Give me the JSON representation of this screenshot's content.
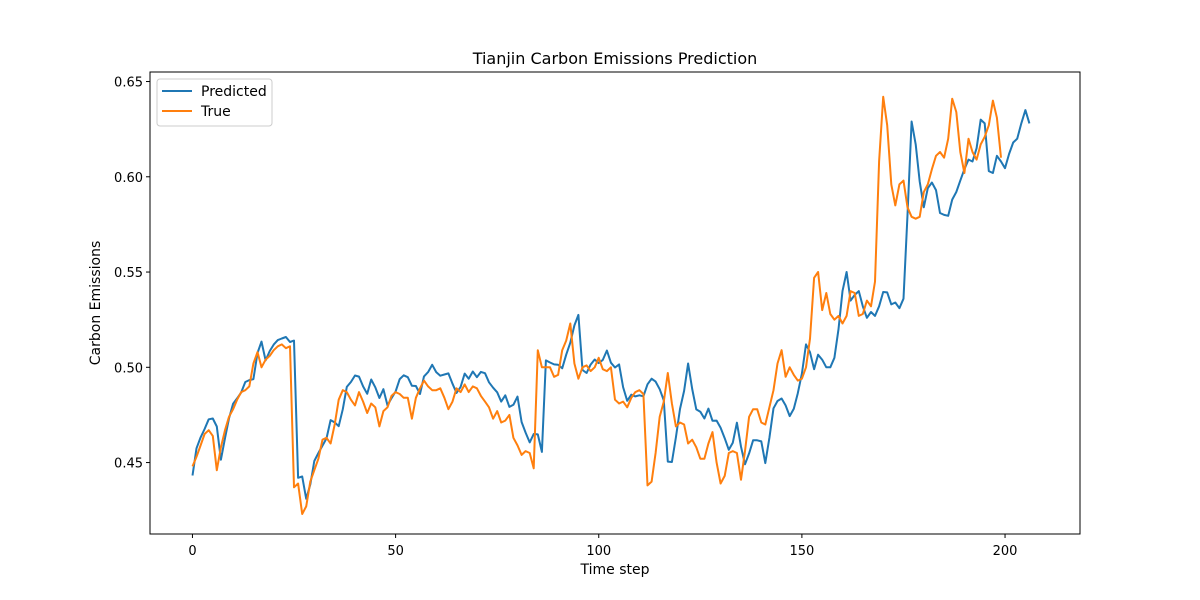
{
  "chart_data": {
    "type": "line",
    "title": "Tianjin Carbon Emissions Prediction",
    "xlabel": "Time step",
    "ylabel": "Carbon Emissions",
    "xlim": [
      -10.45,
      218.45
    ],
    "ylim": [
      0.4125,
      0.655
    ],
    "xticks": [
      0,
      50,
      100,
      150,
      200
    ],
    "yticks": [
      0.45,
      0.5,
      0.55,
      0.6,
      0.65
    ],
    "ytick_labels": [
      "0.45",
      "0.50",
      "0.55",
      "0.60",
      "0.65"
    ],
    "legend_position": "upper-left",
    "grid": false,
    "series": [
      {
        "name": "Predicted",
        "color": "#1f77b4",
        "values": [
          0.4432,
          0.4575,
          0.4632,
          0.4676,
          0.4727,
          0.4731,
          0.4689,
          0.4515,
          0.4628,
          0.4732,
          0.4809,
          0.4837,
          0.4868,
          0.4923,
          0.4933,
          0.4938,
          0.5075,
          0.5135,
          0.5036,
          0.5085,
          0.5119,
          0.5143,
          0.5151,
          0.5159,
          0.5133,
          0.514,
          0.442,
          0.4427,
          0.431,
          0.4385,
          0.4508,
          0.455,
          0.4589,
          0.4627,
          0.4723,
          0.4711,
          0.4691,
          0.478,
          0.4897,
          0.4923,
          0.4957,
          0.4951,
          0.49,
          0.4861,
          0.4936,
          0.4895,
          0.4839,
          0.4885,
          0.48,
          0.4838,
          0.4873,
          0.4938,
          0.4958,
          0.4948,
          0.4903,
          0.4902,
          0.486,
          0.4952,
          0.4975,
          0.5013,
          0.4975,
          0.4956,
          0.4962,
          0.4968,
          0.4914,
          0.4865,
          0.4897,
          0.4967,
          0.494,
          0.4978,
          0.4948,
          0.4976,
          0.4969,
          0.4921,
          0.4893,
          0.4869,
          0.482,
          0.4853,
          0.4792,
          0.4803,
          0.4846,
          0.4713,
          0.4657,
          0.4606,
          0.465,
          0.4648,
          0.4556,
          0.5036,
          0.5025,
          0.5015,
          0.5013,
          0.4995,
          0.5066,
          0.5129,
          0.522,
          0.5275,
          0.4986,
          0.497,
          0.5014,
          0.5041,
          0.5022,
          0.5039,
          0.5088,
          0.5024,
          0.4999,
          0.5015,
          0.4896,
          0.4824,
          0.4856,
          0.4847,
          0.4853,
          0.4848,
          0.4911,
          0.494,
          0.4925,
          0.4885,
          0.4826,
          0.4505,
          0.4503,
          0.4632,
          0.4781,
          0.4876,
          0.502,
          0.4886,
          0.4779,
          0.4767,
          0.4731,
          0.4783,
          0.4719,
          0.472,
          0.4683,
          0.4628,
          0.4567,
          0.4604,
          0.4709,
          0.4583,
          0.4491,
          0.4548,
          0.4617,
          0.4617,
          0.4611,
          0.4497,
          0.463,
          0.4785,
          0.4823,
          0.4836,
          0.48,
          0.4744,
          0.4782,
          0.4864,
          0.4967,
          0.512,
          0.5079,
          0.499,
          0.5066,
          0.504,
          0.5,
          0.5,
          0.505,
          0.52,
          0.54,
          0.55,
          0.535,
          0.538,
          0.54,
          0.532,
          0.526,
          0.529,
          0.527,
          0.532,
          0.5395,
          0.5393,
          0.533,
          0.534,
          0.531,
          0.536,
          0.58,
          0.629,
          0.617,
          0.5975,
          0.584,
          0.594,
          0.597,
          0.593,
          0.581,
          0.58,
          0.5795,
          0.588,
          0.592,
          0.598,
          0.604,
          0.609,
          0.608,
          0.615,
          0.63,
          0.628,
          0.603,
          0.602,
          0.611,
          0.608,
          0.6045,
          0.612,
          0.618,
          0.62,
          0.628,
          0.635,
          0.628
        ]
      },
      {
        "name": "True",
        "color": "#ff7f0e",
        "values": [
          0.448,
          0.453,
          0.459,
          0.465,
          0.467,
          0.464,
          0.446,
          0.458,
          0.467,
          0.474,
          0.478,
          0.483,
          0.487,
          0.488,
          0.49,
          0.502,
          0.508,
          0.5,
          0.504,
          0.506,
          0.509,
          0.511,
          0.512,
          0.51,
          0.511,
          0.437,
          0.439,
          0.423,
          0.427,
          0.44,
          0.446,
          0.452,
          0.462,
          0.463,
          0.46,
          0.47,
          0.483,
          0.488,
          0.487,
          0.483,
          0.48,
          0.487,
          0.482,
          0.476,
          0.481,
          0.479,
          0.469,
          0.477,
          0.479,
          0.485,
          0.487,
          0.486,
          0.484,
          0.484,
          0.473,
          0.484,
          0.489,
          0.493,
          0.49,
          0.488,
          0.488,
          0.489,
          0.484,
          0.478,
          0.482,
          0.489,
          0.487,
          0.491,
          0.487,
          0.49,
          0.489,
          0.485,
          0.482,
          0.479,
          0.473,
          0.477,
          0.471,
          0.472,
          0.475,
          0.463,
          0.459,
          0.454,
          0.456,
          0.455,
          0.447,
          0.509,
          0.5,
          0.5,
          0.5,
          0.495,
          0.496,
          0.509,
          0.514,
          0.523,
          0.502,
          0.494,
          0.5,
          0.501,
          0.498,
          0.5,
          0.505,
          0.499,
          0.498,
          0.5,
          0.483,
          0.481,
          0.482,
          0.479,
          0.484,
          0.487,
          0.488,
          0.486,
          0.438,
          0.44,
          0.455,
          0.474,
          0.482,
          0.497,
          0.481,
          0.469,
          0.471,
          0.47,
          0.46,
          0.462,
          0.458,
          0.452,
          0.452,
          0.46,
          0.466,
          0.45,
          0.439,
          0.443,
          0.455,
          0.456,
          0.455,
          0.441,
          0.456,
          0.474,
          0.478,
          0.478,
          0.471,
          0.47,
          0.479,
          0.488,
          0.502,
          0.509,
          0.495,
          0.5,
          0.496,
          0.493,
          0.494,
          0.5,
          0.515,
          0.547,
          0.55,
          0.53,
          0.539,
          0.528,
          0.525,
          0.527,
          0.523,
          0.527,
          0.54,
          0.539,
          0.527,
          0.528,
          0.535,
          0.532,
          0.545,
          0.608,
          0.642,
          0.627,
          0.596,
          0.585,
          0.596,
          0.598,
          0.584,
          0.579,
          0.578,
          0.579,
          0.592,
          0.596,
          0.604,
          0.611,
          0.613,
          0.61,
          0.62,
          0.641,
          0.634,
          0.613,
          0.602,
          0.62,
          0.613,
          0.609,
          0.617,
          0.621,
          0.627,
          0.64,
          0.631,
          0.61
        ]
      }
    ]
  }
}
